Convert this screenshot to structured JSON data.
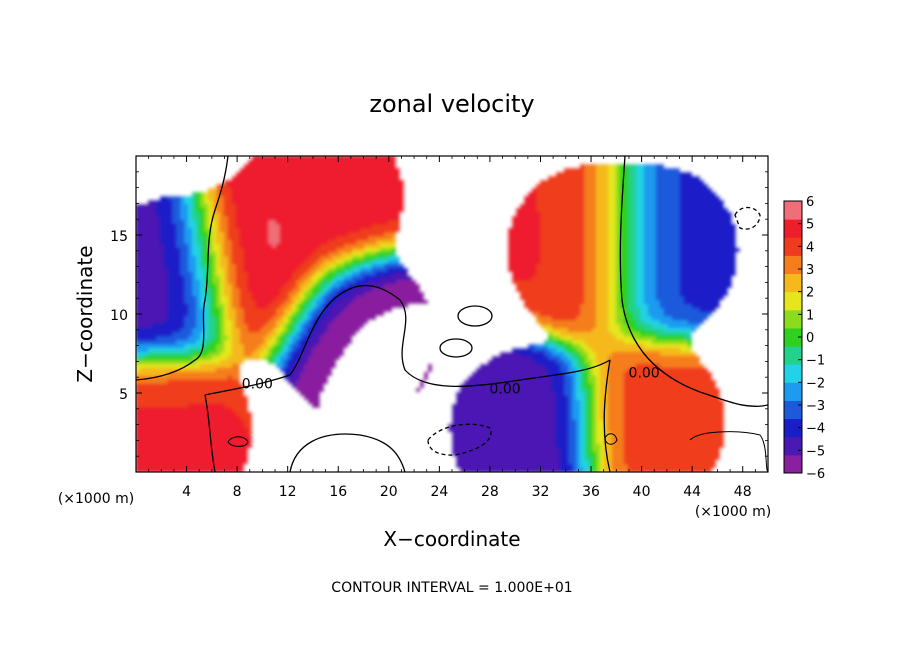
{
  "chart_data": {
    "type": "heatmap",
    "title": "zonal velocity",
    "xlabel": "X−coordinate",
    "ylabel": "Z−coordinate",
    "x_unit_left": "(×1000 m)",
    "x_unit_right": "(×1000 m)",
    "xlim": [
      0,
      50
    ],
    "ylim": [
      0,
      20
    ],
    "x_ticks": [
      4,
      8,
      12,
      16,
      20,
      24,
      28,
      32,
      36,
      40,
      44,
      48
    ],
    "x_tick_labels": [
      "4",
      "8",
      "12",
      "16",
      "20",
      "24",
      "28",
      "32",
      "36",
      "40",
      "44",
      "48"
    ],
    "y_ticks": [
      5,
      10,
      15
    ],
    "y_tick_labels": [
      "5",
      "10",
      "15"
    ],
    "colorbar": {
      "min": -6,
      "max": 6,
      "ticks": [
        6,
        5,
        4,
        3,
        2,
        1,
        0,
        -1,
        -2,
        -3,
        -4,
        -5,
        -6
      ],
      "tick_labels": [
        "6",
        "5",
        "4",
        "3",
        "2",
        "1",
        "0",
        "−1",
        "−2",
        "−3",
        "−4",
        "−5",
        "−6"
      ],
      "colors": [
        "#8a1fa0",
        "#4b18b4",
        "#1a1ec8",
        "#1c5adc",
        "#1e9bf0",
        "#22d2e6",
        "#22d28c",
        "#2ed21e",
        "#8cdc1e",
        "#e6e61e",
        "#f5b91e",
        "#f57d1e",
        "#f03c1e",
        "#ee1e2d",
        "#f06e78"
      ]
    },
    "contour_labels": [
      {
        "text": "0.00",
        "x": 9.6,
        "y": 5.6
      },
      {
        "text": "0.00",
        "x": 29.2,
        "y": 5.3
      },
      {
        "text": "0.00",
        "x": 40.2,
        "y": 6.3
      }
    ],
    "footer": "CONTOUR INTERVAL = 1.000E+01",
    "features": [
      {
        "name": "left cold column",
        "x": 2.5,
        "z": 12,
        "value": -5
      },
      {
        "name": "left jet core",
        "x": 9.5,
        "z": 13,
        "value": 5.5
      },
      {
        "name": "upper warm plume",
        "x": 15,
        "z": 17.5,
        "value": 5
      },
      {
        "name": "central hole",
        "x": 17.5,
        "z": 8.5,
        "value": -6
      },
      {
        "name": "right jet",
        "x": 35.5,
        "z": 14,
        "value": 4.5
      },
      {
        "name": "right cold column",
        "x": 41.5,
        "z": 14,
        "value": -4
      },
      {
        "name": "bottom cold pool",
        "x": 31,
        "z": 2.5,
        "value": -5
      },
      {
        "name": "bottom left warm",
        "x": 3,
        "z": 2.5,
        "value": 4.5
      },
      {
        "name": "bottom right warm",
        "x": 40.5,
        "z": 3,
        "value": 4
      }
    ]
  }
}
